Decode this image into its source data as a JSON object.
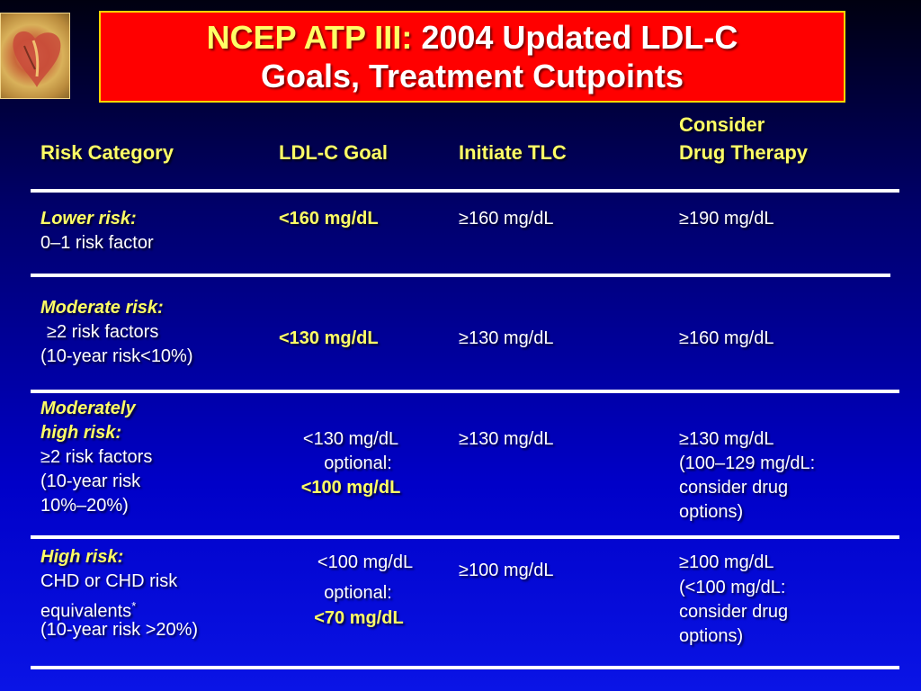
{
  "title": {
    "highlight": "NCEP ATP III:",
    "line1_rest": "2004 Updated LDL-C",
    "line2": "Goals, Treatment Cutpoints"
  },
  "logo_icon": "heart-illustration",
  "headers": {
    "risk_category": "Risk Category",
    "ldl_goal": "LDL-C Goal",
    "initiate_tlc": "Initiate TLC",
    "drug_line1": "Consider",
    "drug_line2": "Drug Therapy"
  },
  "rows": [
    {
      "risk_title": "Lower risk:",
      "risk_lines": [
        "0–1 risk factor"
      ],
      "goal": "<160 mg/dL",
      "tlc": "≥160 mg/dL",
      "drug": [
        "≥190 mg/dL"
      ]
    },
    {
      "risk_title": "Moderate risk:",
      "risk_lines": [
        "≥2 risk factors",
        "(10-year risk<10%)"
      ],
      "goal": "<130 mg/dL",
      "tlc": "≥130 mg/dL",
      "drug": [
        "≥160 mg/dL"
      ]
    },
    {
      "risk_title_lines": [
        "Moderately",
        "high risk:"
      ],
      "risk_lines": [
        "≥2 risk factors",
        "(10-year risk",
        "10%–20%)"
      ],
      "goal_lines": [
        "<130 mg/dL",
        "optional:",
        "<100 mg/dL"
      ],
      "tlc": "≥130 mg/dL",
      "drug": [
        "≥130 mg/dL",
        "(100–129 mg/dL:",
        "consider drug",
        "options)"
      ]
    },
    {
      "risk_title": "High risk:",
      "risk_lines": [
        "CHD or CHD risk",
        "equivalents",
        "(10-year risk >20%)"
      ],
      "risk_footnote": "*",
      "goal_lines": [
        "<100 mg/dL",
        "optional:",
        "<70 mg/dL"
      ],
      "tlc": "≥100 mg/dL",
      "drug": [
        "≥100 mg/dL",
        "(<100 mg/dL:",
        "consider drug",
        "options)"
      ]
    }
  ]
}
